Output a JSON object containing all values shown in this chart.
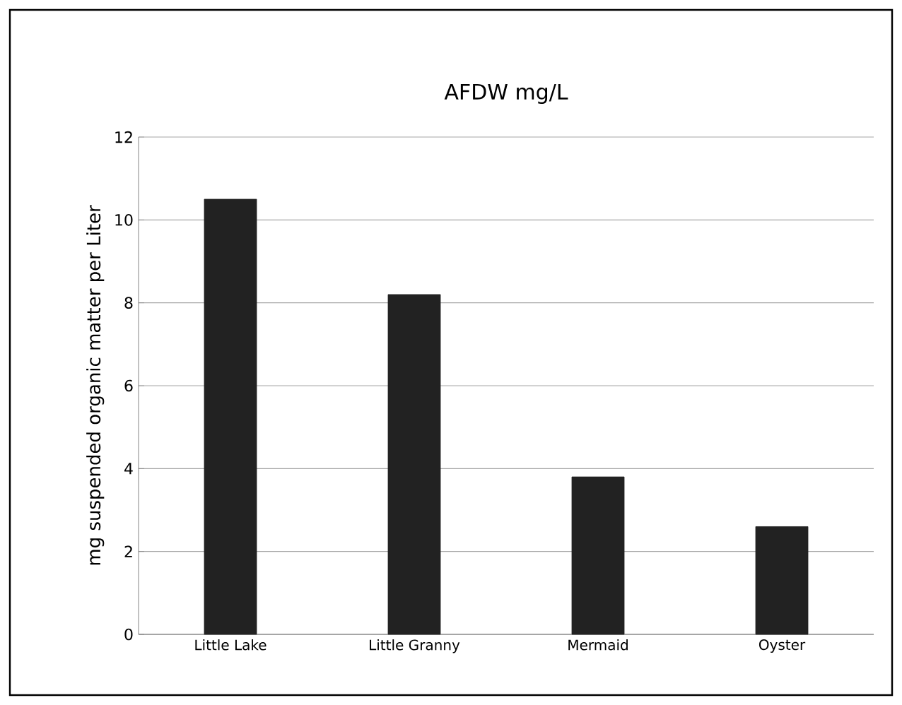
{
  "chart_data": {
    "type": "bar",
    "title": "AFDW mg/L",
    "ylabel": "mg suspended organic matter per Liter",
    "categories": [
      "Little Lake",
      "Little Granny",
      "Mermaid",
      "Oyster"
    ],
    "values": [
      10.5,
      8.2,
      3.8,
      2.6
    ],
    "color": "#222222",
    "ylim": [
      0,
      12
    ],
    "yticks": [
      0,
      2,
      4,
      6,
      8,
      10,
      12
    ],
    "grid": "y"
  }
}
